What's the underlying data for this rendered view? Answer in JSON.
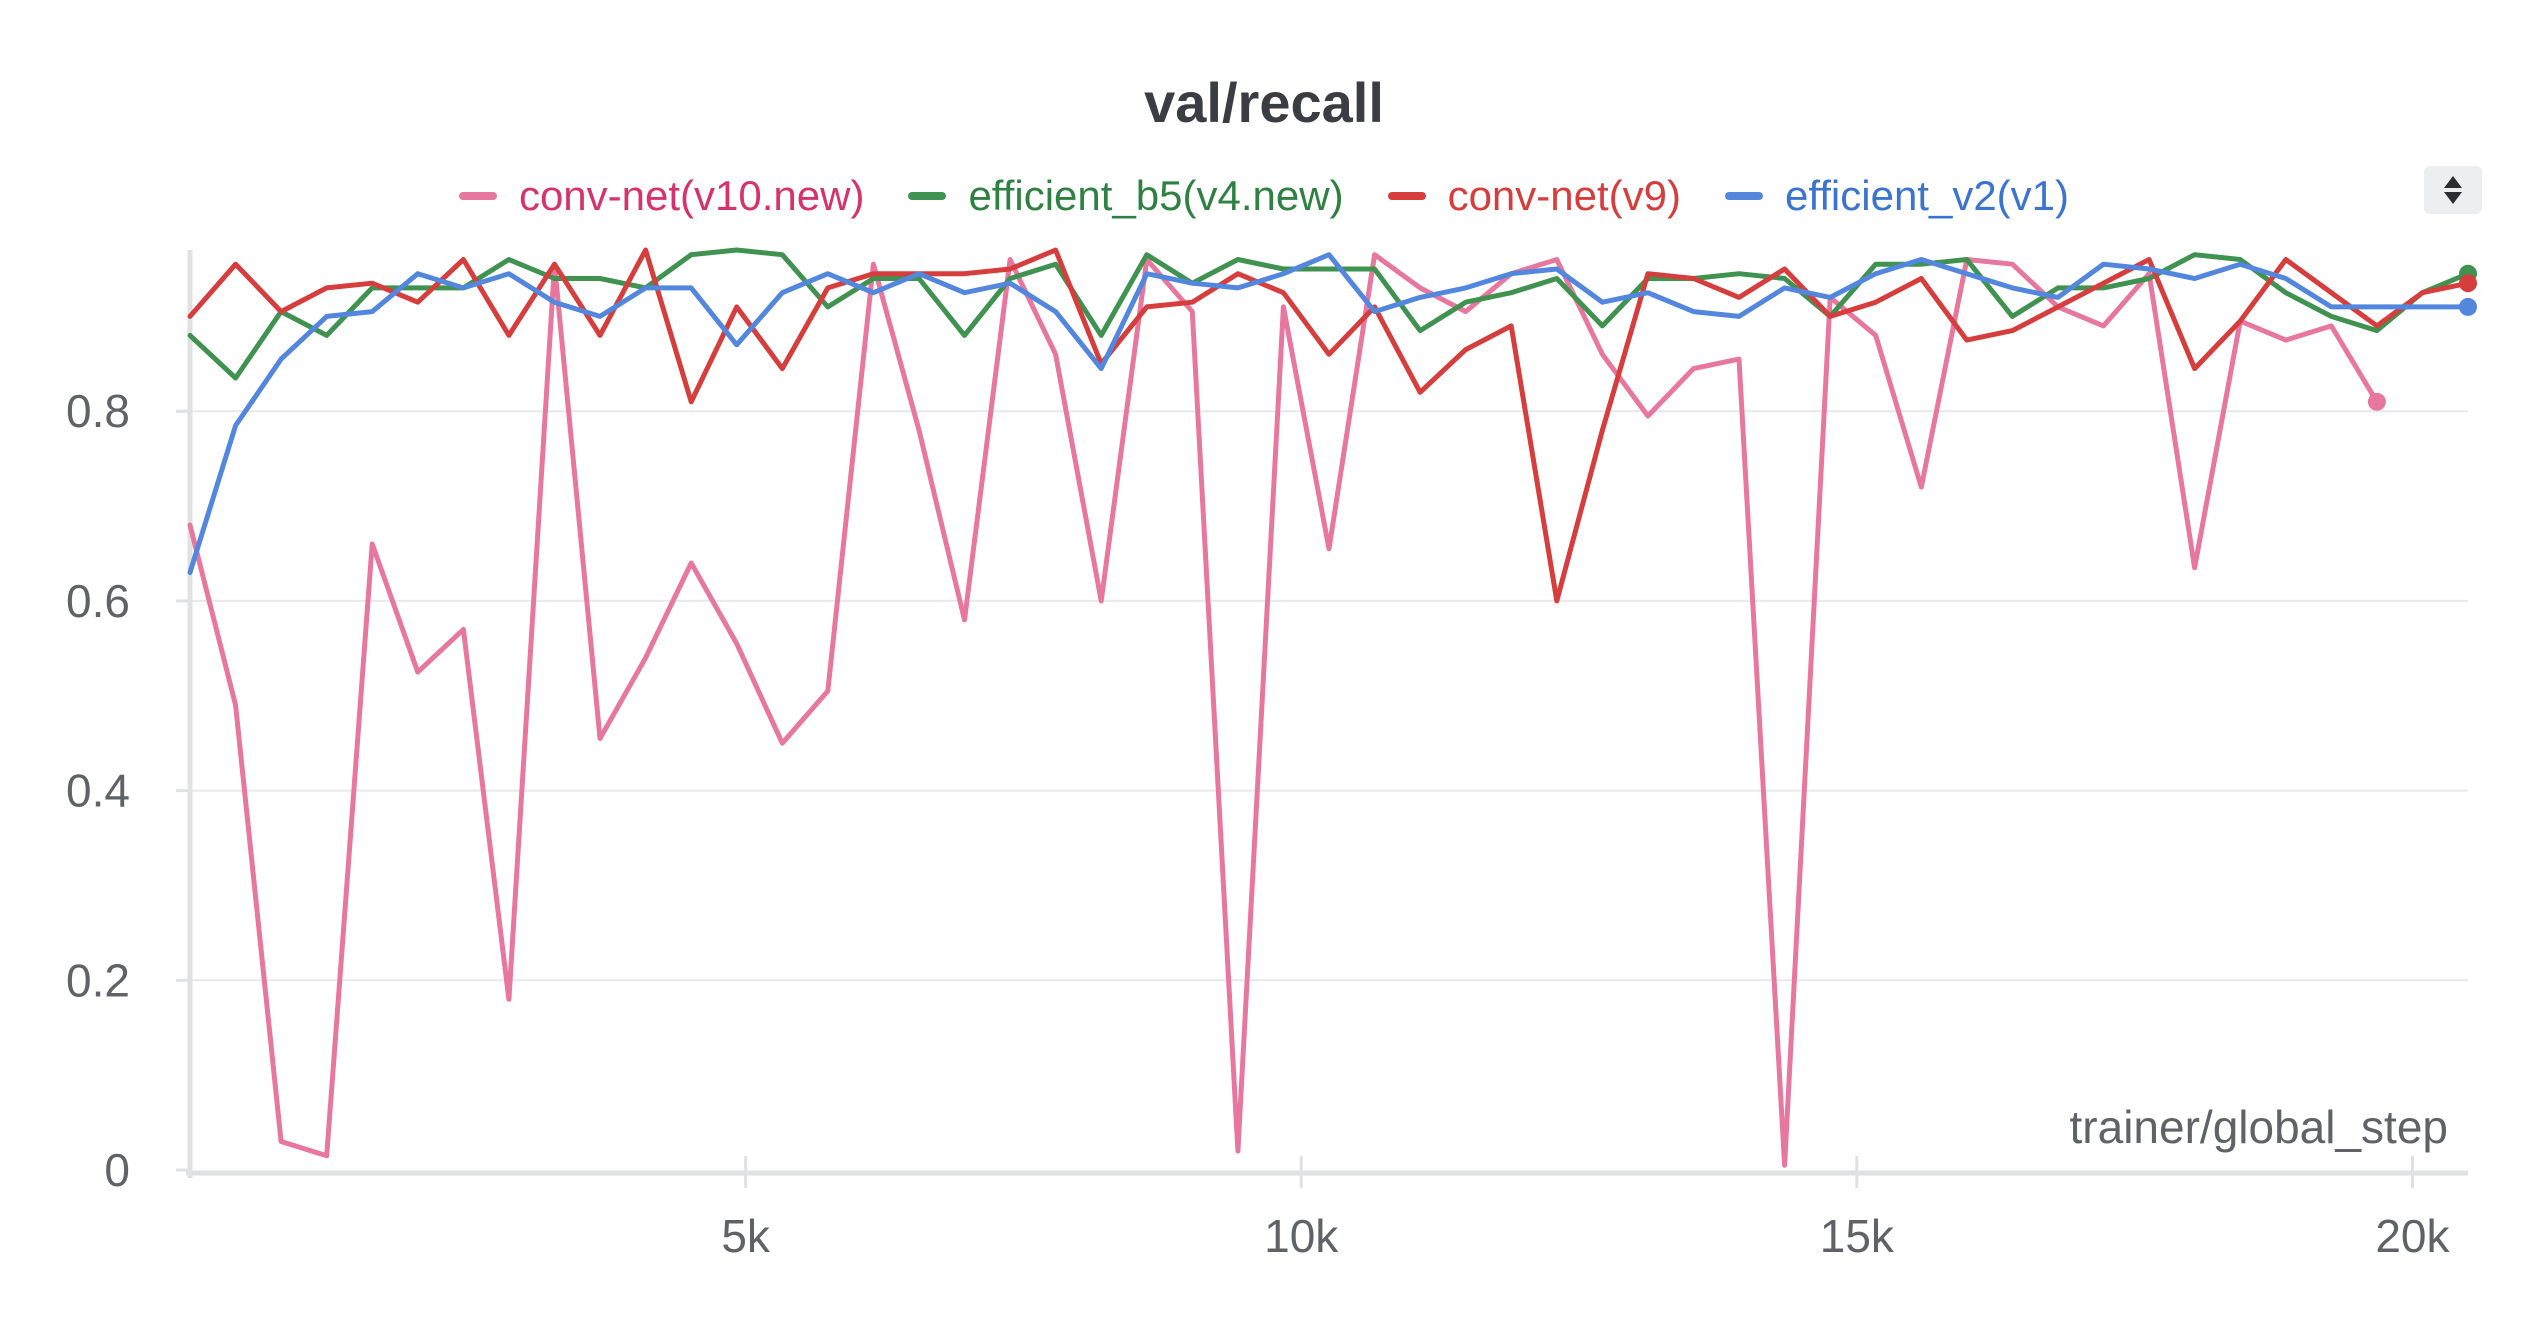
{
  "chart_data": {
    "type": "line",
    "title": "val/recall",
    "xlabel": "trainer/global_step",
    "ylabel": "",
    "xlim": [
      0,
      20500
    ],
    "ylim": [
      0,
      0.97
    ],
    "x_ticks": [
      5000,
      10000,
      15000,
      20000
    ],
    "x_tick_labels": [
      "5k",
      "10k",
      "15k",
      "20k"
    ],
    "y_ticks": [
      0,
      0.2,
      0.4,
      0.6,
      0.8
    ],
    "y_tick_labels": [
      "0",
      "0.2",
      "0.4",
      "0.6",
      "0.8"
    ],
    "grid": true,
    "legend_position": "top",
    "series": [
      {
        "name": "conv-net(v10.new)",
        "color": "#e8779f",
        "label_color": "#d6336c",
        "x": [
          0,
          410,
          820,
          1230,
          1640,
          2050,
          2460,
          2870,
          3280,
          3690,
          4100,
          4510,
          4920,
          5330,
          5740,
          6150,
          6560,
          6970,
          7380,
          7790,
          8200,
          8610,
          9020,
          9430,
          9840,
          10250,
          10660,
          11070,
          11480,
          11890,
          12300,
          12710,
          13120,
          13530,
          13940,
          14350,
          14760,
          15170,
          15580,
          15990,
          16400,
          16810,
          17220,
          17630,
          18040,
          18450,
          18860,
          19270,
          19680,
          20090,
          20500
        ],
        "y": [
          0.68,
          0.49,
          0.03,
          0.015,
          0.66,
          0.525,
          0.57,
          0.18,
          0.955,
          0.455,
          0.54,
          0.64,
          0.555,
          0.45,
          0.505,
          0.955,
          0.78,
          0.58,
          0.96,
          0.86,
          0.6,
          0.96,
          0.905,
          0.02,
          0.91,
          0.655,
          0.965,
          0.93,
          0.905,
          0.945,
          0.96,
          0.86,
          0.795,
          0.845,
          0.855,
          0.005,
          0.92,
          0.88,
          0.72,
          0.96,
          0.955,
          0.91,
          0.89,
          0.945,
          0.635,
          0.895,
          0.875,
          0.89,
          0.81,
          null,
          null
        ],
        "end_marker": true
      },
      {
        "name": "efficient_b5(v4.new)",
        "color": "#3f9250",
        "label_color": "#2f8143",
        "x": [
          0,
          410,
          820,
          1230,
          1640,
          2050,
          2460,
          2870,
          3280,
          3690,
          4100,
          4510,
          4920,
          5330,
          5740,
          6150,
          6560,
          6970,
          7380,
          7790,
          8200,
          8610,
          9020,
          9430,
          9840,
          10250,
          10660,
          11070,
          11480,
          11890,
          12300,
          12710,
          13120,
          13530,
          13940,
          14350,
          14760,
          15170,
          15580,
          15990,
          16400,
          16810,
          17220,
          17630,
          18040,
          18450,
          18860,
          19270,
          19680,
          20090,
          20500
        ],
        "y": [
          0.88,
          0.835,
          0.905,
          0.88,
          0.93,
          0.93,
          0.93,
          0.96,
          0.94,
          0.94,
          0.93,
          0.965,
          0.97,
          0.965,
          0.91,
          0.94,
          0.94,
          0.88,
          0.94,
          0.955,
          0.88,
          0.965,
          0.935,
          0.96,
          0.95,
          0.95,
          0.95,
          0.885,
          0.915,
          0.925,
          0.94,
          0.89,
          0.94,
          0.94,
          0.945,
          0.94,
          0.9,
          0.955,
          0.955,
          0.96,
          0.9,
          0.93,
          0.93,
          0.94,
          0.965,
          0.96,
          0.925,
          0.9,
          0.885,
          0.925,
          0.945
        ],
        "end_marker": true
      },
      {
        "name": "conv-net(v9)",
        "color": "#d63d3d",
        "label_color": "#d63d3d",
        "x": [
          0,
          410,
          820,
          1230,
          1640,
          2050,
          2460,
          2870,
          3280,
          3690,
          4100,
          4510,
          4920,
          5330,
          5740,
          6150,
          6560,
          6970,
          7380,
          7790,
          8200,
          8610,
          9020,
          9430,
          9840,
          10250,
          10660,
          11070,
          11480,
          11890,
          12300,
          12710,
          13120,
          13530,
          13940,
          14350,
          14760,
          15170,
          15580,
          15990,
          16400,
          16810,
          17220,
          17630,
          18040,
          18450,
          18860,
          19270,
          19680,
          20090,
          20500
        ],
        "y": [
          0.9,
          0.955,
          0.905,
          0.93,
          0.935,
          0.915,
          0.96,
          0.88,
          0.955,
          0.88,
          0.97,
          0.81,
          0.91,
          0.845,
          0.93,
          0.945,
          0.945,
          0.945,
          0.95,
          0.97,
          0.85,
          0.91,
          0.915,
          0.945,
          0.925,
          0.86,
          0.91,
          0.82,
          0.865,
          0.89,
          0.6,
          0.78,
          0.945,
          0.94,
          0.92,
          0.95,
          0.9,
          0.915,
          0.94,
          0.875,
          0.885,
          0.91,
          0.935,
          0.96,
          0.845,
          0.895,
          0.96,
          0.925,
          0.89,
          0.925,
          0.935
        ],
        "end_marker": true
      },
      {
        "name": "efficient_v2(v1)",
        "color": "#5387dd",
        "label_color": "#3a74d0",
        "x": [
          0,
          410,
          820,
          1230,
          1640,
          2050,
          2460,
          2870,
          3280,
          3690,
          4100,
          4510,
          4920,
          5330,
          5740,
          6150,
          6560,
          6970,
          7380,
          7790,
          8200,
          8610,
          9020,
          9430,
          9840,
          10250,
          10660,
          11070,
          11480,
          11890,
          12300,
          12710,
          13120,
          13530,
          13940,
          14350,
          14760,
          15170,
          15580,
          15990,
          16400,
          16810,
          17220,
          17630,
          18040,
          18450,
          18860,
          19270,
          19680,
          20090,
          20500
        ],
        "y": [
          0.63,
          0.785,
          0.855,
          0.9,
          0.905,
          0.945,
          0.93,
          0.945,
          0.915,
          0.9,
          0.93,
          0.93,
          0.87,
          0.925,
          0.945,
          0.925,
          0.945,
          0.925,
          0.935,
          0.905,
          0.845,
          0.945,
          0.935,
          0.93,
          0.945,
          0.965,
          0.905,
          0.92,
          0.93,
          0.945,
          0.95,
          0.915,
          0.925,
          0.905,
          0.9,
          0.93,
          0.92,
          0.945,
          0.96,
          0.945,
          0.93,
          0.92,
          0.955,
          0.95,
          0.94,
          0.955,
          0.94,
          0.91,
          0.91,
          0.91,
          0.91
        ],
        "end_marker": true
      }
    ]
  },
  "legend_scroll_icon": "up-down-arrows-icon"
}
